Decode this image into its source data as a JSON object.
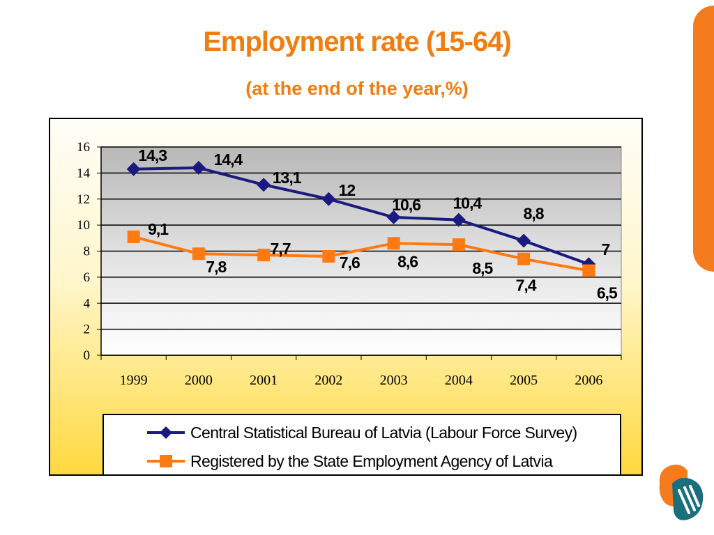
{
  "page": {
    "title": "Employment rate (15-64)",
    "subtitle": "(at the end of the year,%)"
  },
  "colors": {
    "accent": "#f07d10",
    "series_blue": "#1a1a80",
    "series_orange": "#ff7a12"
  },
  "chart_data": {
    "type": "line",
    "title": "Employment rate (15-64)",
    "subtitle": "(at the end of the year,%)",
    "x": [
      "1999",
      "2000",
      "2001",
      "2002",
      "2003",
      "2004",
      "2005",
      "2006"
    ],
    "ylim": [
      0,
      16
    ],
    "yticks": [
      0,
      2,
      4,
      6,
      8,
      10,
      12,
      14,
      16
    ],
    "grid": true,
    "legend_position": "bottom",
    "series": [
      {
        "name": "Central Statistical Bureau of Latvia (Labour Force Survey)",
        "values": [
          14.3,
          14.4,
          13.1,
          12,
          10.6,
          10.4,
          8.8,
          7
        ],
        "labels": [
          "14,3",
          "14,4",
          "13,1",
          "12",
          "10,6",
          "10,4",
          "8,8",
          "7"
        ],
        "color": "#1a1a80",
        "marker": "diamond"
      },
      {
        "name": "Registered by the State Employment Agency of Latvia",
        "values": [
          9.1,
          7.8,
          7.7,
          7.6,
          8.6,
          8.5,
          7.4,
          6.5
        ],
        "labels": [
          "9,1",
          "7,8",
          "7,7",
          "7,6",
          "8,6",
          "8,5",
          "7,4",
          "6,5"
        ],
        "color": "#ff7a12",
        "marker": "square"
      }
    ]
  },
  "legend": {
    "series1": "Central Statistical Bureau of Latvia (Labour Force Survey)",
    "series2": "Registered by the State Employment Agency of Latvia"
  },
  "icons": {
    "logo": "hands-logo-icon",
    "side_tab": "orange-side-tab"
  }
}
